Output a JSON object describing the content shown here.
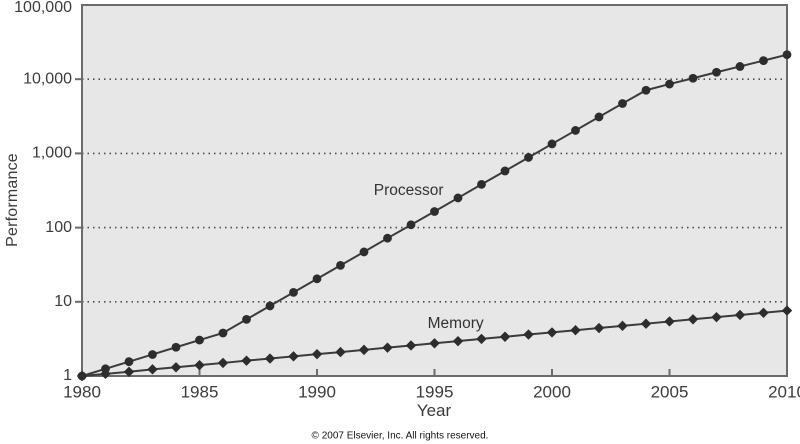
{
  "figure": {
    "copyright": "© 2007 Elsevier, Inc. All rights reserved."
  },
  "style": {
    "plot_background": "#e7e7e7",
    "plot_border": "#6b6b6b",
    "gridline_color": "#4d4d4d",
    "line_color": "#3b3b3b",
    "marker_color": "#2d2d2d",
    "text_color": "#3c3c3c"
  },
  "chart_data": {
    "type": "line",
    "title": "",
    "xlabel": "Year",
    "ylabel": "Performance",
    "y_scale": "log",
    "xlim": [
      1980,
      2010
    ],
    "ylim": [
      1,
      100000
    ],
    "grid": "horizontal-dotted",
    "legend_position": "inline-labels",
    "x_ticks": [
      1980,
      1985,
      1990,
      1995,
      2000,
      2005,
      2010
    ],
    "x_tick_labels": [
      "1980",
      "1985",
      "1990",
      "1995",
      "2000",
      "2005",
      "2010"
    ],
    "y_ticks": [
      1,
      10,
      100,
      1000,
      10000,
      100000
    ],
    "y_tick_labels": [
      "1",
      "10",
      "100",
      "1,000",
      "10,000",
      "100,000"
    ],
    "x": [
      1980,
      1981,
      1982,
      1983,
      1984,
      1985,
      1986,
      1987,
      1988,
      1989,
      1990,
      1991,
      1992,
      1993,
      1994,
      1995,
      1996,
      1997,
      1998,
      1999,
      2000,
      2001,
      2002,
      2003,
      2004,
      2005,
      2006,
      2007,
      2008,
      2009,
      2010
    ],
    "series": [
      {
        "name": "Processor",
        "marker": "circle",
        "values": [
          1,
          1.25,
          1.56,
          1.95,
          2.44,
          3.05,
          3.8,
          5.8,
          8.8,
          13.4,
          20.4,
          31,
          47,
          72,
          109,
          165,
          251,
          382,
          580,
          882,
          1341,
          2039,
          3100,
          4700,
          7100,
          8600,
          10300,
          12400,
          14850,
          17800,
          21400
        ]
      },
      {
        "name": "Memory",
        "marker": "diamond",
        "values": [
          1,
          1.07,
          1.14,
          1.23,
          1.31,
          1.4,
          1.5,
          1.61,
          1.72,
          1.84,
          1.97,
          2.1,
          2.25,
          2.41,
          2.58,
          2.76,
          2.95,
          3.16,
          3.38,
          3.62,
          3.87,
          4.14,
          4.43,
          4.74,
          5.07,
          5.43,
          5.81,
          6.21,
          6.65,
          7.11,
          7.61
        ]
      }
    ],
    "annotations": [
      {
        "text": "Processor",
        "year": 1993.9,
        "value": 312
      },
      {
        "text": "Memory",
        "year": 1995.9,
        "value": 5.0
      }
    ]
  }
}
